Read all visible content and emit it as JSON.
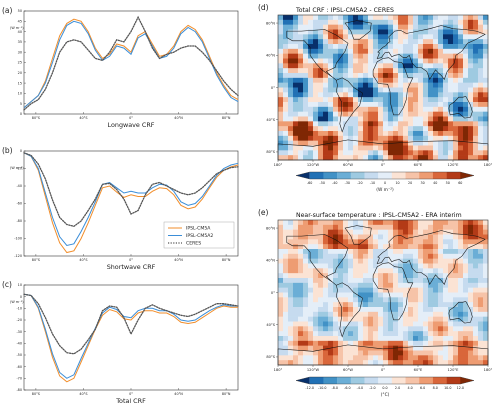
{
  "colors": {
    "ipsl_cm5a": "#f28e2b",
    "ipsl_cm5a2": "#3b8ed8",
    "ceres": "#555555",
    "map_blue_dark": "#08306b",
    "map_red_dark": "#7f2704"
  },
  "legend": {
    "items": [
      "IPSL-CM5A",
      "IPSL-CM5A2",
      "CERES"
    ]
  },
  "chart_data": [
    {
      "type": "line",
      "panel": "(a)",
      "xlabel": "Longwave CRF",
      "ylabel": "(W m⁻²)",
      "x_ticks": [
        "80°S",
        "40°S",
        "0°",
        "40°N",
        "80°N"
      ],
      "y_ticks": [
        "0",
        "5",
        "10",
        "15",
        "20",
        "25",
        "30",
        "35",
        "40",
        "45",
        "50"
      ],
      "ylim": [
        0,
        50
      ],
      "xlim": [
        -90,
        90
      ],
      "x": [
        -90,
        -84,
        -78,
        -72,
        -66,
        -60,
        -54,
        -48,
        -42,
        -36,
        -30,
        -24,
        -18,
        -12,
        -6,
        0,
        6,
        12,
        18,
        24,
        30,
        36,
        42,
        48,
        54,
        60,
        66,
        72,
        78,
        84,
        90
      ],
      "series": [
        {
          "name": "IPSL-CM5A",
          "values": [
            3,
            6,
            9,
            16,
            27,
            38,
            44,
            46,
            45,
            40,
            32,
            27,
            29,
            34,
            33,
            30,
            38,
            40,
            34,
            28,
            29,
            33,
            40,
            43,
            41,
            36,
            28,
            20,
            14,
            9,
            7
          ]
        },
        {
          "name": "IPSL-CM5A2",
          "values": [
            3,
            6,
            9,
            15,
            25,
            36,
            43,
            45,
            44,
            39,
            31,
            26,
            28,
            33,
            32,
            29,
            37,
            39,
            33,
            27,
            28,
            32,
            39,
            42,
            40,
            35,
            27,
            19,
            13,
            8,
            6
          ]
        },
        {
          "name": "CERES",
          "values": [
            2,
            5,
            7,
            12,
            20,
            30,
            35,
            36,
            35,
            31,
            27,
            26,
            30,
            36,
            35,
            40,
            47,
            40,
            32,
            27,
            29,
            30,
            32,
            33,
            33,
            30,
            26,
            21,
            16,
            12,
            9
          ]
        }
      ]
    },
    {
      "type": "line",
      "panel": "(b)",
      "xlabel": "Shortwave CRF",
      "ylabel": "(W m⁻²)",
      "x_ticks": [
        "80°S",
        "40°S",
        "0°",
        "40°N",
        "80°N"
      ],
      "y_ticks": [
        "0",
        "-20",
        "-40",
        "-60",
        "-80",
        "-100",
        "-120"
      ],
      "ylim": [
        -120,
        0
      ],
      "xlim": [
        -90,
        90
      ],
      "x": [
        -90,
        -84,
        -78,
        -72,
        -66,
        -60,
        -54,
        -48,
        -42,
        -36,
        -30,
        -24,
        -18,
        -12,
        -6,
        0,
        6,
        12,
        18,
        24,
        30,
        36,
        42,
        48,
        54,
        60,
        66,
        72,
        78,
        84,
        90
      ],
      "series": [
        {
          "name": "IPSL-CM5A",
          "values": [
            -2,
            -6,
            -22,
            -52,
            -82,
            -105,
            -116,
            -114,
            -100,
            -82,
            -62,
            -42,
            -40,
            -47,
            -53,
            -50,
            -52,
            -52,
            -46,
            -42,
            -43,
            -50,
            -62,
            -66,
            -64,
            -55,
            -42,
            -30,
            -22,
            -18,
            -16
          ]
        },
        {
          "name": "IPSL-CM5A2",
          "values": [
            -2,
            -6,
            -20,
            -48,
            -76,
            -98,
            -108,
            -106,
            -92,
            -76,
            -58,
            -38,
            -36,
            -42,
            -48,
            -46,
            -48,
            -48,
            -42,
            -38,
            -39,
            -46,
            -58,
            -62,
            -60,
            -52,
            -40,
            -28,
            -20,
            -16,
            -14
          ]
        },
        {
          "name": "CERES",
          "values": [
            -2,
            -5,
            -15,
            -32,
            -56,
            -76,
            -84,
            -86,
            -80,
            -68,
            -55,
            -38,
            -37,
            -44,
            -55,
            -72,
            -68,
            -50,
            -38,
            -36,
            -40,
            -44,
            -48,
            -50,
            -48,
            -42,
            -34,
            -26,
            -22,
            -19,
            -18
          ]
        }
      ]
    },
    {
      "type": "line",
      "panel": "(c)",
      "xlabel": "Total CRF",
      "ylabel": "(W m⁻²)",
      "x_ticks": [
        "80°S",
        "40°S",
        "0°",
        "40°N",
        "80°N"
      ],
      "y_ticks": [
        "10",
        "0",
        "-10",
        "-20",
        "-30",
        "-40",
        "-50",
        "-60",
        "-70",
        "-80"
      ],
      "ylim": [
        -80,
        10
      ],
      "xlim": [
        -90,
        90
      ],
      "x": [
        -90,
        -84,
        -78,
        -72,
        -66,
        -60,
        -54,
        -48,
        -42,
        -36,
        -30,
        -24,
        -18,
        -12,
        -6,
        0,
        6,
        12,
        18,
        24,
        30,
        36,
        42,
        48,
        54,
        60,
        66,
        72,
        78,
        84,
        90
      ],
      "series": [
        {
          "name": "IPSL-CM5A",
          "values": [
            2,
            1,
            -10,
            -30,
            -52,
            -68,
            -73,
            -70,
            -56,
            -42,
            -28,
            -16,
            -11,
            -13,
            -19,
            -20,
            -14,
            -12,
            -12,
            -14,
            -14,
            -17,
            -22,
            -23,
            -22,
            -18,
            -14,
            -10,
            -8,
            -9,
            -9
          ]
        },
        {
          "name": "IPSL-CM5A2",
          "values": [
            2,
            1,
            -9,
            -28,
            -49,
            -65,
            -70,
            -67,
            -53,
            -40,
            -27,
            -14,
            -9,
            -11,
            -17,
            -18,
            -12,
            -10,
            -10,
            -12,
            -12,
            -15,
            -20,
            -21,
            -20,
            -16,
            -12,
            -9,
            -7,
            -8,
            -8
          ]
        },
        {
          "name": "CERES",
          "values": [
            2,
            1,
            -6,
            -18,
            -32,
            -42,
            -48,
            -49,
            -45,
            -37,
            -28,
            -12,
            -8,
            -9,
            -18,
            -32,
            -20,
            -10,
            -7,
            -10,
            -12,
            -14,
            -16,
            -17,
            -15,
            -12,
            -9,
            -6,
            -6,
            -7,
            -8
          ]
        }
      ]
    },
    {
      "type": "heatmap",
      "panel": "(d)",
      "title": "Total CRF : IPSL-CM5A2 - CERES",
      "x_ticks": [
        "180°",
        "120°W",
        "60°W",
        "0°",
        "60°E",
        "120°E",
        "180°"
      ],
      "y_ticks": [
        "80°N",
        "40°N",
        "0°",
        "40°S",
        "80°S"
      ],
      "colorbar_ticks": [
        "-60",
        "-50",
        "-40",
        "-30",
        "-20",
        "-10",
        "0",
        "10",
        "20",
        "30",
        "40",
        "50",
        "60"
      ],
      "colorbar_unit": "(W m⁻²)"
    },
    {
      "type": "heatmap",
      "panel": "(e)",
      "title": "Near-surface temperature : IPSL-CM5A2 - ERA interim",
      "x_ticks": [
        "180°",
        "120°W",
        "60°W",
        "0°",
        "60°E",
        "120°E",
        "180°"
      ],
      "y_ticks": [
        "80°N",
        "40°N",
        "0°",
        "40°S",
        "80°S"
      ],
      "colorbar_ticks": [
        "-12.0",
        "-10.0",
        "-8.0",
        "-6.0",
        "-4.0",
        "-2.0",
        "0.0",
        "2.0",
        "4.0",
        "6.0",
        "8.0",
        "10.0",
        "12.0"
      ],
      "colorbar_unit": "(°C)"
    }
  ]
}
